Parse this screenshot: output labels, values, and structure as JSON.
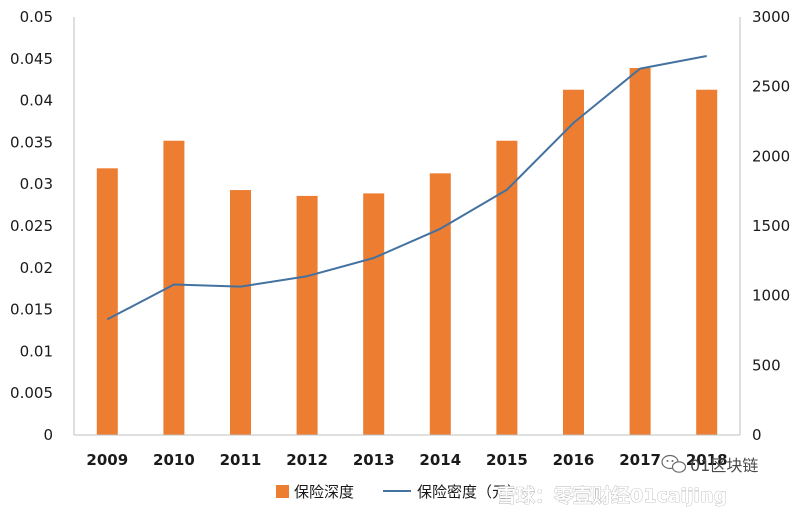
{
  "chart_data": {
    "type": "bar+line",
    "title": "",
    "categories": [
      "2009",
      "2010",
      "2011",
      "2012",
      "2013",
      "2014",
      "2015",
      "2016",
      "2017",
      "2018"
    ],
    "series": [
      {
        "name": "保险深度",
        "type": "bar",
        "axis": "left",
        "color": "#ED7D31",
        "values": [
          0.0319,
          0.0352,
          0.0293,
          0.0286,
          0.0289,
          0.0313,
          0.0352,
          0.0413,
          0.0439,
          0.0413
        ]
      },
      {
        "name": "保险密度（元）",
        "type": "line",
        "axis": "right",
        "color": "#4472A0",
        "values": [
          830,
          1080,
          1065,
          1140,
          1270,
          1480,
          1760,
          2240,
          2630,
          2720
        ]
      }
    ],
    "y_left": {
      "min": 0,
      "max": 0.05,
      "ticks": [
        "0",
        "0.005",
        "0.01",
        "0.015",
        "0.02",
        "0.025",
        "0.03",
        "0.035",
        "0.04",
        "0.045",
        "0.05"
      ]
    },
    "y_right": {
      "min": 0,
      "max": 3000,
      "ticks": [
        "0",
        "500",
        "1000",
        "1500",
        "2000",
        "2500",
        "3000"
      ]
    },
    "grid": false,
    "legend_position": "bottom-center"
  },
  "watermark": {
    "main": "雪球：零壹财经01caijing",
    "side": "01区块链",
    "icon": "wechat-icon"
  }
}
